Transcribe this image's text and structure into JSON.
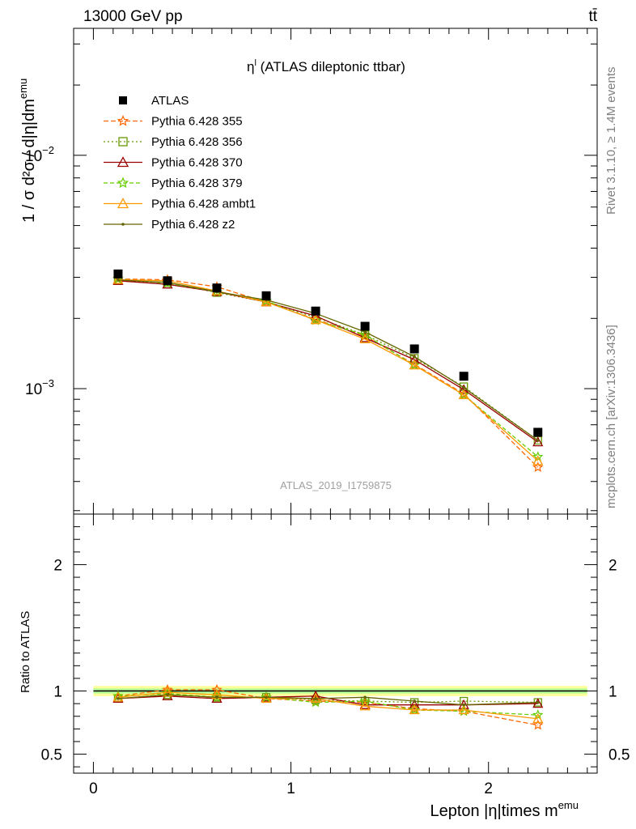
{
  "header": {
    "energy_label": "13000 GeV pp",
    "process_label": "tt̄",
    "title": "η",
    "title_sup": "l",
    "title_rest": " (ATLAS dileptonic ttbar)"
  },
  "side_labels": {
    "rivet": "Rivet 3.1.10, ≥ 1.4M events",
    "mcplots": "mcplots.cern.ch [arXiv:1306.3436]"
  },
  "watermark": "ATLAS_2019_I1759875",
  "axes": {
    "ylabel_main": "1 / σ  d²σ / d|η|dm",
    "ylabel_main_sup": "emu",
    "ylabel_ratio": "Ratio to ATLAS",
    "xlabel": "Lepton |η|times m",
    "xlabel_sup": "emu",
    "main_ticks": [
      {
        "label": "10",
        "exp": "−2",
        "value": 0.01
      },
      {
        "label": "10",
        "exp": "−3",
        "value": 0.001
      }
    ],
    "ratio_ticks": [
      "2",
      "1",
      "0.5"
    ],
    "x_ticks": [
      "0",
      "1",
      "2"
    ]
  },
  "chart_data": {
    "type": "line",
    "x": [
      0.125,
      0.375,
      0.625,
      0.875,
      1.125,
      1.375,
      1.625,
      1.875,
      2.25
    ],
    "xlim": [
      -0.1,
      2.55
    ],
    "ylim_main": [
      0.00029,
      0.035
    ],
    "ylim_ratio": [
      0.35,
      2.4
    ],
    "yscale_main": "log",
    "reference": {
      "name": "ATLAS",
      "color": "#000000",
      "values": [
        0.0031,
        0.0029,
        0.0027,
        0.0025,
        0.00215,
        0.00185,
        0.00148,
        0.00113,
        0.00065
      ]
    },
    "series": [
      {
        "name": "Pythia 6.428 355",
        "color": "#ff6600",
        "marker": "star",
        "dash": "6,3",
        "values": [
          0.00295,
          0.00293,
          0.00273,
          0.00235,
          0.00198,
          0.00168,
          0.00127,
          0.00095,
          0.00046
        ],
        "ratio": [
          0.96,
          1.01,
          1.01,
          0.94,
          0.92,
          0.91,
          0.86,
          0.84,
          0.73
        ]
      },
      {
        "name": "Pythia 6.428 356",
        "color": "#669900",
        "marker": "square",
        "dash": "2,3",
        "values": [
          0.0029,
          0.00285,
          0.00258,
          0.00235,
          0.00202,
          0.0017,
          0.00135,
          0.00102,
          0.0006
        ],
        "ratio": [
          0.94,
          0.97,
          0.95,
          0.95,
          0.93,
          0.92,
          0.91,
          0.92,
          0.91
        ]
      },
      {
        "name": "Pythia 6.428 370",
        "color": "#990000",
        "marker": "triangle",
        "dash": "",
        "values": [
          0.0029,
          0.0028,
          0.0026,
          0.00235,
          0.00205,
          0.00165,
          0.00133,
          0.00099,
          0.00059
        ],
        "ratio": [
          0.94,
          0.96,
          0.94,
          0.95,
          0.96,
          0.89,
          0.89,
          0.89,
          0.9
        ]
      },
      {
        "name": "Pythia 6.428 379",
        "color": "#66cc00",
        "marker": "star",
        "dash": "5,3",
        "values": [
          0.00295,
          0.00283,
          0.0026,
          0.00238,
          0.00196,
          0.0017,
          0.00126,
          0.00094,
          0.00051
        ],
        "ratio": [
          0.96,
          0.98,
          0.95,
          0.95,
          0.91,
          0.92,
          0.85,
          0.84,
          0.81
        ]
      },
      {
        "name": "Pythia 6.428 ambt1",
        "color": "#ff9900",
        "marker": "triangle",
        "dash": "",
        "values": [
          0.00293,
          0.0029,
          0.00262,
          0.00235,
          0.00197,
          0.00163,
          0.00126,
          0.00094,
          0.00049
        ],
        "ratio": [
          0.95,
          0.99,
          0.97,
          0.94,
          0.94,
          0.88,
          0.85,
          0.85,
          0.78
        ]
      },
      {
        "name": "Pythia 6.428 z2",
        "color": "#666600",
        "marker": "dot",
        "dash": "",
        "values": [
          0.00292,
          0.00285,
          0.0026,
          0.0024,
          0.0021,
          0.00175,
          0.00137,
          0.00101,
          0.0006
        ],
        "ratio": [
          0.94,
          0.97,
          0.95,
          0.95,
          0.94,
          0.95,
          0.92,
          0.89,
          0.91
        ]
      }
    ]
  }
}
